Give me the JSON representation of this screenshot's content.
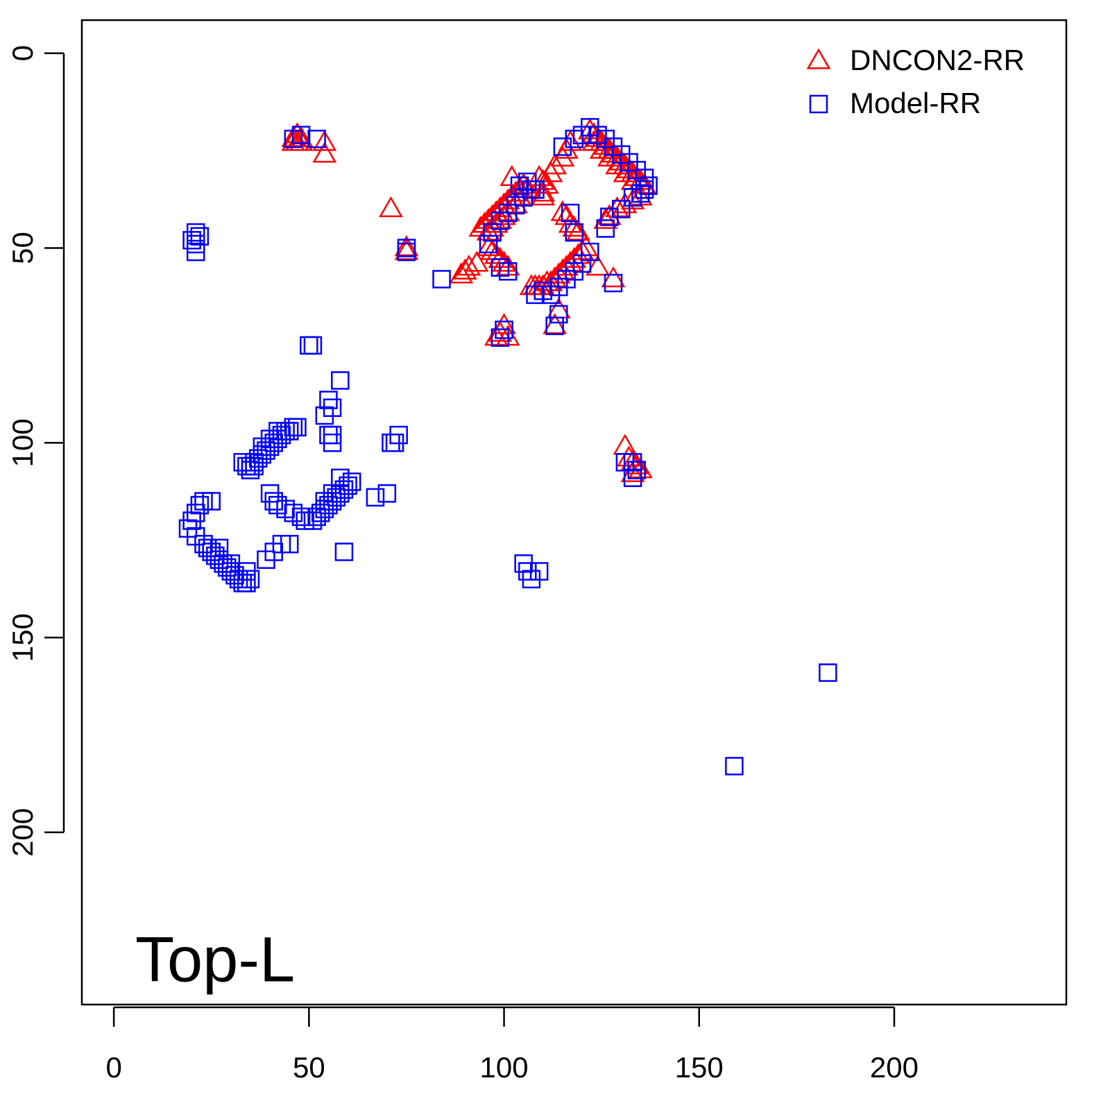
{
  "chart_data": {
    "type": "scatter",
    "annotation": "Top-L",
    "xlim": [
      -8.2,
      244.1
    ],
    "ylim": [
      244.2,
      -8.5
    ],
    "xticks": [
      0,
      50,
      100,
      150,
      200
    ],
    "yticks": [
      0,
      50,
      100,
      150,
      200
    ],
    "legend": "top-right",
    "series": [
      {
        "name": "DNCON2-RR",
        "color": "#ff0000",
        "marker": "triangle",
        "x": [
          46,
          47,
          48,
          47,
          46,
          48,
          54,
          54,
          71,
          75,
          75,
          94,
          95,
          96,
          97,
          98,
          99,
          100,
          101,
          102,
          103,
          104,
          105,
          102,
          96,
          97,
          98,
          99,
          100,
          101,
          103,
          104,
          106,
          109,
          110,
          110,
          117,
          116,
          115,
          113,
          112,
          111,
          110,
          122,
          123,
          124,
          125,
          126,
          127,
          128,
          129,
          130,
          131,
          132,
          133,
          134,
          135,
          136,
          123,
          125,
          127,
          129,
          131,
          133,
          135,
          133,
          131,
          129,
          127,
          126,
          115,
          116,
          117,
          118,
          119,
          121,
          120,
          119,
          118,
          117,
          116,
          115,
          114,
          113,
          112,
          111,
          110,
          109,
          108,
          107,
          124,
          128,
          96,
          97,
          98,
          99,
          100,
          101,
          93,
          91,
          90,
          89,
          99,
          100,
          101,
          98,
          114,
          113,
          131,
          132,
          133,
          134,
          135,
          133
        ],
        "values": [
          22,
          21,
          22,
          23,
          23,
          23,
          23,
          26,
          40,
          50,
          51,
          45,
          44,
          43,
          42,
          41,
          40,
          39,
          38,
          37,
          36,
          35,
          34,
          32,
          46,
          45,
          44,
          43,
          42,
          41,
          39,
          37,
          35,
          32,
          33,
          36,
          23,
          25,
          27,
          29,
          31,
          34,
          37,
          20,
          21,
          22,
          23,
          24,
          25,
          26,
          27,
          28,
          29,
          30,
          31,
          32,
          33,
          34,
          23,
          25,
          27,
          29,
          31,
          33,
          37,
          38,
          39,
          40,
          42,
          43,
          41,
          42,
          44,
          45,
          46,
          50,
          51,
          52,
          53,
          54,
          55,
          56,
          57,
          58,
          59,
          59,
          60,
          60,
          60,
          60,
          55,
          58,
          50,
          51,
          52,
          53,
          54,
          55,
          54,
          55,
          56,
          57,
          72,
          70,
          73,
          73,
          66,
          70,
          101,
          104,
          105,
          106,
          107,
          108
        ]
      },
      {
        "name": "Model-RR",
        "color": "#0000ff",
        "marker": "square",
        "x": [
          20,
          21,
          21,
          21,
          22,
          46,
          48,
          52,
          75,
          75,
          84,
          50,
          51,
          58,
          55,
          54,
          56,
          55,
          56,
          56,
          71,
          72,
          73,
          47,
          46,
          45,
          44,
          43,
          42,
          41,
          40,
          39,
          38,
          37,
          36,
          35,
          34,
          33,
          35,
          36,
          42,
          40,
          38,
          61,
          60,
          59,
          58,
          57,
          56,
          55,
          54,
          53,
          52,
          51,
          49,
          48,
          46,
          44,
          42,
          41,
          40,
          58,
          56,
          54,
          67,
          70,
          59,
          19,
          20,
          21,
          22,
          23,
          25,
          21,
          23,
          24,
          25,
          26,
          27,
          28,
          29,
          30,
          31,
          32,
          33,
          34,
          35,
          34,
          30,
          27,
          39,
          41,
          43,
          45,
          105,
          106,
          107,
          109,
          183,
          159,
          97,
          99,
          101,
          103,
          105,
          107,
          104,
          106,
          108,
          96,
          115,
          118,
          120,
          122,
          124,
          126,
          128,
          130,
          132,
          134,
          136,
          137,
          136,
          135,
          133,
          130,
          127,
          126,
          128,
          110,
          112,
          114,
          116,
          118,
          120,
          122,
          108,
          99,
          101,
          99,
          100,
          113,
          114,
          133,
          133,
          134,
          131,
          117,
          118
        ],
        "values": [
          48,
          46,
          49,
          51,
          47,
          22,
          21,
          22,
          50,
          51,
          58,
          75,
          75,
          84,
          89,
          93,
          91,
          98,
          100,
          98,
          100,
          100,
          98,
          96,
          96,
          97,
          97,
          98,
          99,
          100,
          101,
          102,
          103,
          104,
          105,
          106,
          106,
          105,
          107,
          106,
          97,
          99,
          101,
          110,
          111,
          112,
          113,
          114,
          115,
          116,
          117,
          118,
          119,
          120,
          120,
          119,
          118,
          117,
          116,
          115,
          113,
          109,
          113,
          115,
          114,
          113,
          128,
          122,
          120,
          118,
          116,
          115,
          115,
          124,
          126,
          127,
          128,
          129,
          130,
          131,
          132,
          133,
          134,
          135,
          136,
          136,
          135,
          133,
          131,
          127,
          130,
          128,
          126,
          126,
          131,
          133,
          135,
          133,
          159,
          183,
          46,
          43,
          41,
          39,
          37,
          35,
          34,
          33,
          35,
          49,
          24,
          22,
          21,
          19,
          21,
          22,
          24,
          26,
          28,
          30,
          32,
          34,
          35,
          36,
          37,
          40,
          42,
          45,
          59,
          61,
          62,
          60,
          58,
          56,
          54,
          51,
          62,
          55,
          56,
          73,
          71,
          70,
          67,
          105,
          109,
          107,
          105,
          41,
          46
        ]
      }
    ]
  }
}
